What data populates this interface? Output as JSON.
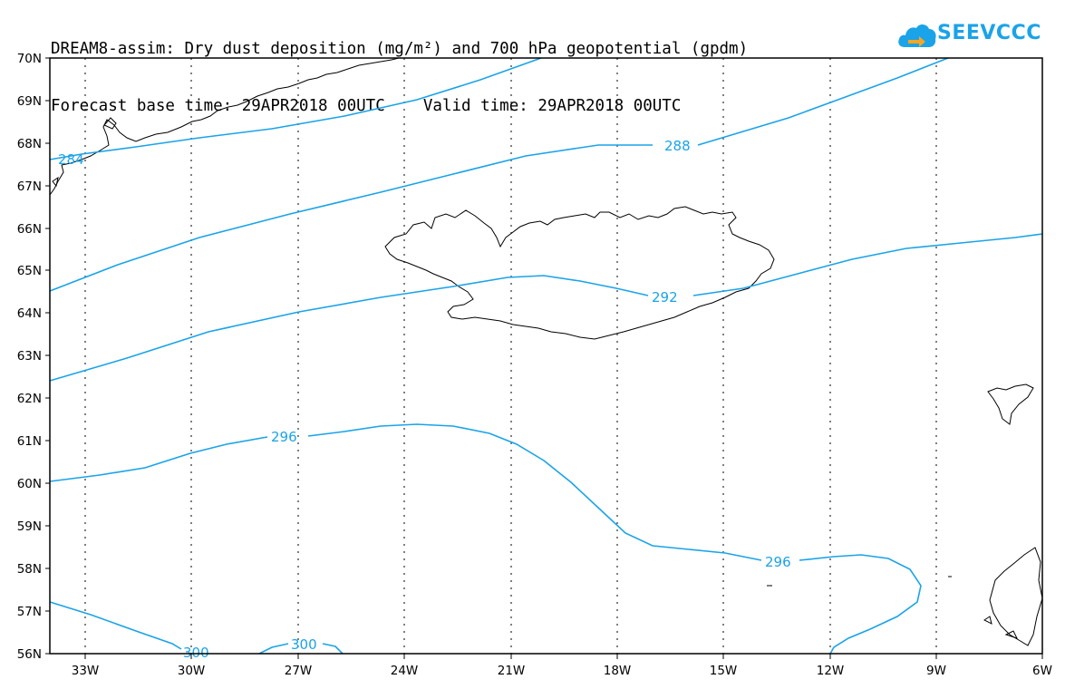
{
  "title": {
    "line1": "DREAM8-assim: Dry dust deposition (mg/m²) and 700 hPa geopotential (gpdm)",
    "line2": "Forecast base time: 29APR2018 00UTC    Valid time: 29APR2018 00UTC"
  },
  "logo": {
    "text": "SEEVCCC",
    "color": "#1aa3e8",
    "icon": "cloud-icon"
  },
  "axes": {
    "lat_labels": [
      "70N",
      "69N",
      "68N",
      "67N",
      "66N",
      "65N",
      "64N",
      "63N",
      "62N",
      "61N",
      "60N",
      "59N",
      "58N",
      "57N",
      "56N"
    ],
    "lon_labels": [
      "33W",
      "30W",
      "27W",
      "24W",
      "21W",
      "18W",
      "15W",
      "12W",
      "9W",
      "6W"
    ]
  },
  "contour_color": "#1aa3e8",
  "contour_labels": [
    "284",
    "288",
    "292",
    "296",
    "296",
    "300",
    "300"
  ]
}
